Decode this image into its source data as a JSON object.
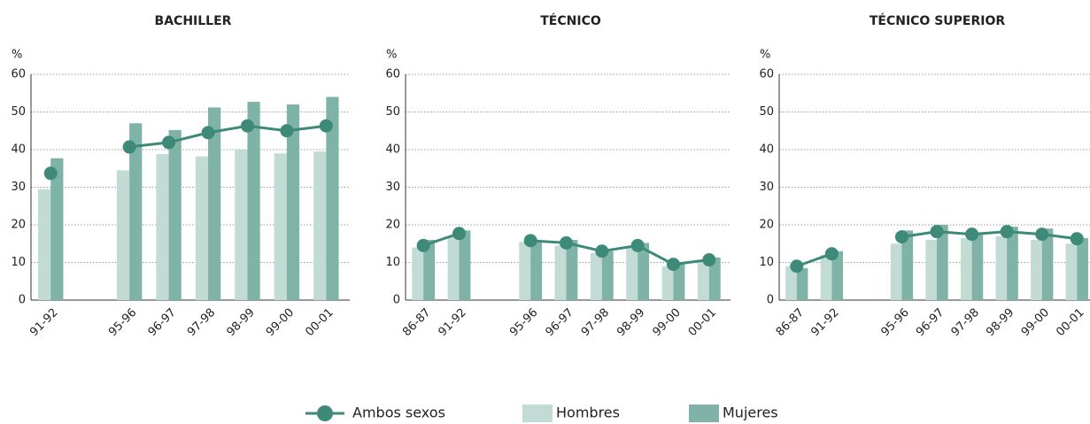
{
  "chart_data": [
    {
      "type": "bar-line",
      "title": "BACHILLER",
      "ylabel": "%",
      "categories": [
        "91-92",
        null,
        "95-96",
        "96-97",
        "97-98",
        "98-99",
        "99-00",
        "00-01"
      ],
      "series": [
        {
          "color": "#c2dcd5",
          "values": [
            29.5,
            null,
            34.5,
            38.8,
            38.2,
            40,
            39,
            39.5
          ]
        },
        {
          "color": "#7fb3a7",
          "values": [
            37.7,
            null,
            47,
            45.2,
            51.2,
            52.7,
            52,
            54
          ]
        },
        {
          "color": "#3d8a78",
          "values": [
            33.7,
            null,
            40.7,
            41.9,
            44.5,
            46.3,
            45,
            46.3
          ]
        }
      ],
      "ylim": [
        0,
        60
      ],
      "yticks": [
        0,
        10,
        20,
        30,
        40,
        50,
        60
      ],
      "grid": true
    },
    {
      "type": "bar-line",
      "title": "TÉCNICO",
      "ylabel": "%",
      "categories": [
        "86-87",
        "91-92",
        null,
        "95-96",
        "96-97",
        "97-98",
        "98-99",
        "99-00",
        "00-01"
      ],
      "series": [
        {
          "color": "#c2dcd5",
          "values": [
            14,
            17,
            null,
            15.5,
            14.5,
            12.5,
            14,
            9,
            10.5
          ]
        },
        {
          "color": "#7fb3a7",
          "values": [
            16,
            18.5,
            null,
            15.5,
            16,
            13,
            15.2,
            10,
            11.3
          ]
        },
        {
          "color": "#3d8a78",
          "values": [
            14.5,
            17.7,
            null,
            15.8,
            15.2,
            13,
            14.5,
            9.5,
            10.7
          ]
        }
      ],
      "ylim": [
        0,
        60
      ],
      "yticks": [
        0,
        10,
        20,
        30,
        40,
        50,
        60
      ],
      "grid": true
    },
    {
      "type": "bar-line",
      "title": "TÉCNICO SUPERIOR",
      "ylabel": "%",
      "categories": [
        "86-87",
        "91-92",
        null,
        "95-96",
        "96-97",
        "97-98",
        "98-99",
        "99-00",
        "00-01"
      ],
      "series": [
        {
          "color": "#c2dcd5",
          "values": [
            9,
            12,
            null,
            15,
            16,
            16.5,
            17,
            16,
            15
          ]
        },
        {
          "color": "#7fb3a7",
          "values": [
            8.5,
            13,
            null,
            18.5,
            20,
            18,
            19.5,
            19,
            16.5
          ]
        },
        {
          "color": "#3d8a78",
          "values": [
            9,
            12.3,
            null,
            16.8,
            18.2,
            17.5,
            18.2,
            17.5,
            16.3
          ]
        }
      ],
      "ylim": [
        0,
        60
      ],
      "yticks": [
        0,
        10,
        20,
        30,
        40,
        50,
        60
      ],
      "grid": true
    }
  ],
  "legend": [
    {
      "name": "Ambos sexos",
      "color": "#3d8a78",
      "marker": "line"
    },
    {
      "name": "Hombres",
      "color": "#c2dcd5",
      "marker": "box"
    },
    {
      "name": "Mujeres",
      "color": "#7fb3a7",
      "marker": "box"
    }
  ]
}
